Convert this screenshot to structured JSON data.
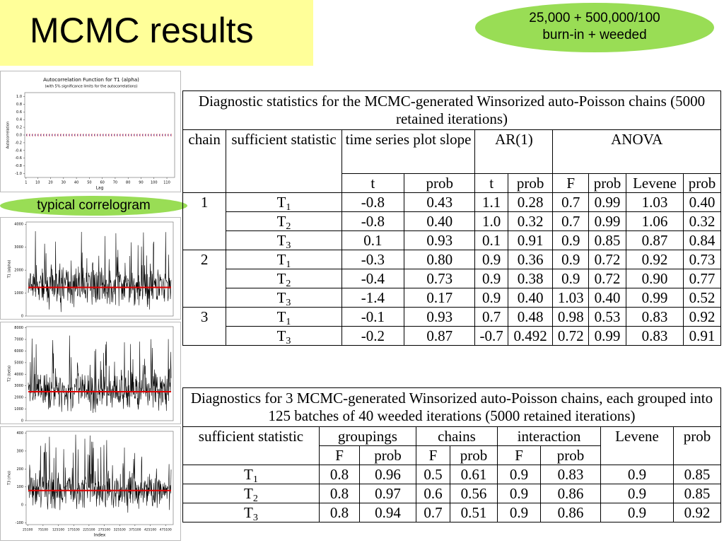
{
  "header": {
    "title": "MCMC results",
    "callout": [
      "25,000 + 500,000/100",
      "burn-in + weeded"
    ]
  },
  "correlogram": {
    "title": "Autocorrelation Function for T1 (alpha)",
    "subtitle": "(with 5% significance limits for the autocorrelations)",
    "ylabel": "Autocorrelation",
    "xlabel": "Lag",
    "xlim": [
      0,
      116
    ],
    "ylim": [
      -1.1,
      1.1
    ],
    "xticks": [
      1,
      10,
      20,
      30,
      40,
      50,
      60,
      70,
      80,
      90,
      100,
      110
    ],
    "yticks": [
      {
        "value": 1,
        "label": "1.0"
      },
      {
        "value": 0.8,
        "label": "0.8"
      },
      {
        "value": 0.6,
        "label": "0.6"
      },
      {
        "value": 0.4,
        "label": "0.4"
      },
      {
        "value": 0.2,
        "label": "0.2"
      },
      {
        "value": 0,
        "label": "0.0"
      },
      {
        "value": -0.2,
        "label": "-0.2"
      },
      {
        "value": -0.4,
        "label": "-0.4"
      },
      {
        "value": -0.6,
        "label": "-0.6"
      },
      {
        "value": -0.8,
        "label": "-0.8"
      },
      {
        "value": -1,
        "label": "-1.0"
      }
    ],
    "caption": "typical correlogram"
  },
  "traces": [
    {
      "ylabel": "T1 (alpha)",
      "ylim": [
        0,
        4100
      ],
      "yticks": [
        0,
        1000,
        2000,
        3000,
        4000
      ],
      "mean_line": 1250
    },
    {
      "ylabel": "T2 (beta)",
      "ylim": [
        0,
        8100
      ],
      "yticks": [
        0,
        1000,
        2000,
        3000,
        4000,
        5000,
        6000,
        7000,
        8000
      ],
      "mean_line": 2500
    },
    {
      "ylabel": "T3 (rho)",
      "ylim": [
        -110,
        410
      ],
      "yticks": [
        -100,
        0,
        100,
        200,
        300,
        400
      ],
      "mean_line": 80,
      "xlabel": "Index",
      "xlim": [
        20000,
        500000
      ],
      "xticks": [
        25100,
        75100,
        125100,
        175100,
        225100,
        275100,
        325100,
        375100,
        425100,
        475100
      ]
    }
  ],
  "table1": {
    "title": "Diagnostic statistics for the MCMC-generated Winsorized auto-Poisson chains (5000 retained iterations)",
    "top": [
      "chain",
      "sufficient statistic",
      "time series plot slope",
      "AR(1)",
      "ANOVA"
    ],
    "sub": [
      "t",
      "prob",
      "t",
      "prob",
      "F",
      "prob",
      "Levene",
      "prob"
    ],
    "groups": [
      {
        "chain": "1",
        "rows": [
          {
            "statistic": {
              "symbol": "T",
              "index": "1"
            },
            "values": [
              "-0.8",
              "0.43",
              "1.1",
              "0.28",
              "0.7",
              "0.99",
              "1.03",
              "0.40"
            ]
          },
          {
            "statistic": {
              "symbol": "T",
              "index": "2"
            },
            "values": [
              "-0.8",
              "0.40",
              "1.0",
              "0.32",
              "0.7",
              "0.99",
              "1.06",
              "0.32"
            ]
          },
          {
            "statistic": {
              "symbol": "T",
              "index": "3"
            },
            "values": [
              "0.1",
              "0.93",
              "0.1",
              "0.91",
              "0.9",
              "0.85",
              "0.87",
              "0.84"
            ]
          }
        ]
      },
      {
        "chain": "2",
        "rows": [
          {
            "statistic": {
              "symbol": "T",
              "index": "1"
            },
            "values": [
              "-0.3",
              "0.80",
              "0.9",
              "0.36",
              "0.9",
              "0.72",
              "0.92",
              "0.73"
            ]
          },
          {
            "statistic": {
              "symbol": "T",
              "index": "2"
            },
            "values": [
              "-0.4",
              "0.73",
              "0.9",
              "0.38",
              "0.9",
              "0.72",
              "0.90",
              "0.77"
            ]
          },
          {
            "statistic": {
              "symbol": "T",
              "index": "3"
            },
            "values": [
              "-1.4",
              "0.17",
              "0.9",
              "0.40",
              "1.03",
              "0.40",
              "0.99",
              "0.52"
            ]
          }
        ]
      },
      {
        "chain": "3",
        "rows": [
          {
            "statistic": {
              "symbol": "T",
              "index": "1"
            },
            "values": [
              "-0.1",
              "0.93",
              "0.7",
              "0.48",
              "0.98",
              "0.53",
              "0.83",
              "0.92"
            ]
          },
          {
            "statistic": {
              "symbol": "T",
              "index": "3"
            },
            "values": [
              "-0.2",
              "0.87",
              "-0.7",
              "0.492",
              "0.72",
              "0.99",
              "0.83",
              "0.91"
            ]
          }
        ]
      }
    ]
  },
  "table2": {
    "title": "Diagnostics for 3 MCMC-generated Winsorized auto-Poisson chains, each grouped into 125 batches of 40 weeded iterations (5000 retained iterations)",
    "top": [
      "sufficient statistic",
      "groupings",
      "chains",
      "interaction",
      "Levene",
      "prob"
    ],
    "sub": [
      "F",
      "prob",
      "F",
      "prob",
      "F",
      "prob"
    ],
    "rows": [
      {
        "statistic": {
          "symbol": "T",
          "index": "1"
        },
        "values": [
          "0.8",
          "0.96",
          "0.5",
          "0.61",
          "0.9",
          "0.83",
          "0.9",
          "0.85"
        ]
      },
      {
        "statistic": {
          "symbol": "T",
          "index": "2"
        },
        "values": [
          "0.8",
          "0.97",
          "0.6",
          "0.56",
          "0.9",
          "0.86",
          "0.9",
          "0.85"
        ]
      },
      {
        "statistic": {
          "symbol": "T",
          "index": "3"
        },
        "values": [
          "0.8",
          "0.94",
          "0.7",
          "0.51",
          "0.9",
          "0.86",
          "0.9",
          "0.92"
        ]
      }
    ]
  }
}
